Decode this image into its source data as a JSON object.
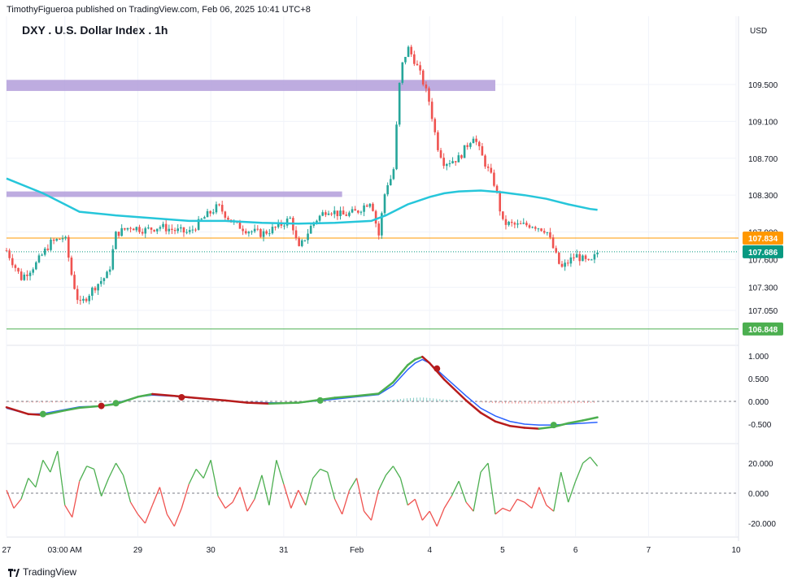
{
  "header": {
    "published": "TimothyFigueroa published on TradingView.com, Feb 06, 2025 10:41 UTC+8"
  },
  "title": "DXY . U.S. Dollar Index . 1h",
  "currency": "USD",
  "footer": {
    "brand": "TradingView"
  },
  "colors": {
    "bull": "#26a69a",
    "bear": "#ef5350",
    "ma": "#26c6da",
    "zone": "#b39ddb",
    "orange_line": "#ff9800",
    "green_line": "#4caf50",
    "last_price": "#089981",
    "macd_blue": "#2962ff",
    "macd_green": "#4caf50",
    "macd_red": "#b71c1c",
    "osc_green": "#4caf50",
    "osc_red": "#ef5350"
  },
  "chart_data": [
    {
      "type": "candlestick",
      "title": "DXY . U.S. Dollar Index . 1h",
      "y_ticks": [
        "109.500",
        "109.100",
        "108.700",
        "108.300",
        "107.900",
        "107.600",
        "107.300",
        "107.050"
      ],
      "y_tick_values": [
        109.5,
        109.1,
        108.7,
        108.3,
        107.9,
        107.6,
        107.3,
        107.05
      ],
      "x_ticks": [
        "27",
        "03:00 AM",
        "29",
        "30",
        "31",
        "Feb",
        "4",
        "5",
        "6",
        "7",
        "10"
      ],
      "x_tick_positions": [
        0,
        8,
        18,
        28,
        38,
        48,
        58,
        68,
        78,
        88,
        100
      ],
      "price_levels": [
        {
          "name": "resistance",
          "value": 107.834,
          "label": "107.834"
        },
        {
          "name": "last",
          "value": 107.686,
          "label": "107.686"
        },
        {
          "name": "support",
          "value": 106.848,
          "label": "106.848"
        }
      ],
      "zones": [
        {
          "from_x": 0,
          "to_x": 67,
          "low": 109.43,
          "high": 109.55
        },
        {
          "from_x": 0,
          "to_x": 46,
          "low": 108.28,
          "high": 108.34
        }
      ],
      "close_path": [
        [
          0,
          107.7
        ],
        [
          2,
          107.4
        ],
        [
          4,
          107.55
        ],
        [
          6,
          107.78
        ],
        [
          8,
          107.85
        ],
        [
          9,
          107.4
        ],
        [
          10,
          107.1
        ],
        [
          12,
          107.3
        ],
        [
          14,
          107.45
        ],
        [
          15,
          107.88
        ],
        [
          17,
          107.96
        ],
        [
          19,
          107.92
        ],
        [
          21,
          107.96
        ],
        [
          23,
          107.92
        ],
        [
          25,
          107.89
        ],
        [
          27,
          108.05
        ],
        [
          29,
          108.18
        ],
        [
          31,
          108.0
        ],
        [
          33,
          107.92
        ],
        [
          35,
          107.88
        ],
        [
          37,
          107.95
        ],
        [
          39,
          108.05
        ],
        [
          40,
          107.7
        ],
        [
          42,
          108.0
        ],
        [
          44,
          108.15
        ],
        [
          46,
          108.08
        ],
        [
          48,
          108.12
        ],
        [
          50,
          108.25
        ],
        [
          51,
          107.85
        ],
        [
          52,
          108.4
        ],
        [
          53,
          108.52
        ],
        [
          54,
          109.65
        ],
        [
          55,
          109.9
        ],
        [
          56,
          109.75
        ],
        [
          57,
          109.55
        ],
        [
          58,
          109.3
        ],
        [
          59,
          108.85
        ],
        [
          60,
          108.65
        ],
        [
          62,
          108.7
        ],
        [
          64,
          108.95
        ],
        [
          65,
          108.75
        ],
        [
          67,
          108.4
        ],
        [
          68,
          108.0
        ],
        [
          70,
          107.97
        ],
        [
          72,
          107.98
        ],
        [
          74,
          107.92
        ],
        [
          76,
          107.5
        ],
        [
          78,
          107.65
        ],
        [
          80,
          107.55
        ],
        [
          81,
          107.68
        ]
      ],
      "candle_count": 200,
      "ma_path": [
        [
          0,
          108.48
        ],
        [
          5,
          108.32
        ],
        [
          10,
          108.12
        ],
        [
          15,
          108.08
        ],
        [
          20,
          108.05
        ],
        [
          25,
          108.02
        ],
        [
          30,
          108.02
        ],
        [
          35,
          108.0
        ],
        [
          40,
          107.99
        ],
        [
          45,
          108.0
        ],
        [
          50,
          108.02
        ],
        [
          52,
          108.08
        ],
        [
          55,
          108.2
        ],
        [
          58,
          108.28
        ],
        [
          60,
          108.32
        ],
        [
          62,
          108.34
        ],
        [
          65,
          108.35
        ],
        [
          68,
          108.33
        ],
        [
          71,
          108.3
        ],
        [
          74,
          108.26
        ],
        [
          77,
          108.2
        ],
        [
          80,
          108.15
        ],
        [
          81,
          108.14
        ]
      ]
    },
    {
      "type": "line",
      "name": "macd",
      "y_ticks": [
        "1.000",
        "0.500",
        "0.000",
        "-0.500"
      ],
      "y_tick_values": [
        1.0,
        0.5,
        0.0,
        -0.5
      ],
      "macd": [
        [
          0,
          -0.15
        ],
        [
          3,
          -0.28
        ],
        [
          5,
          -0.27
        ],
        [
          8,
          -0.18
        ],
        [
          10,
          -0.12
        ],
        [
          13,
          -0.1
        ],
        [
          15,
          -0.04
        ],
        [
          18,
          0.1
        ],
        [
          20,
          0.14
        ],
        [
          23,
          0.11
        ],
        [
          25,
          0.08
        ],
        [
          30,
          0.02
        ],
        [
          33,
          -0.02
        ],
        [
          36,
          -0.03
        ],
        [
          40,
          -0.03
        ],
        [
          45,
          0.05
        ],
        [
          48,
          0.1
        ],
        [
          51,
          0.15
        ],
        [
          53,
          0.35
        ],
        [
          55,
          0.7
        ],
        [
          56,
          0.84
        ],
        [
          57,
          0.92
        ],
        [
          58,
          0.84
        ],
        [
          60,
          0.55
        ],
        [
          63,
          0.12
        ],
        [
          65,
          -0.15
        ],
        [
          67,
          -0.32
        ],
        [
          69,
          -0.44
        ],
        [
          71,
          -0.5
        ],
        [
          73,
          -0.52
        ],
        [
          75,
          -0.52
        ],
        [
          77,
          -0.5
        ],
        [
          79,
          -0.48
        ],
        [
          81,
          -0.46
        ]
      ],
      "signal": [
        [
          0,
          -0.13
        ],
        [
          3,
          -0.28
        ],
        [
          5,
          -0.3
        ],
        [
          8,
          -0.2
        ],
        [
          10,
          -0.14
        ],
        [
          13,
          -0.1
        ],
        [
          15,
          -0.06
        ],
        [
          18,
          0.1
        ],
        [
          20,
          0.16
        ],
        [
          23,
          0.12
        ],
        [
          25,
          0.09
        ],
        [
          30,
          0.02
        ],
        [
          33,
          -0.03
        ],
        [
          36,
          -0.05
        ],
        [
          40,
          -0.03
        ],
        [
          45,
          0.08
        ],
        [
          48,
          0.12
        ],
        [
          51,
          0.17
        ],
        [
          53,
          0.42
        ],
        [
          55,
          0.8
        ],
        [
          56,
          0.92
        ],
        [
          57,
          0.98
        ],
        [
          58,
          0.84
        ],
        [
          60,
          0.48
        ],
        [
          63,
          0.02
        ],
        [
          65,
          -0.25
        ],
        [
          67,
          -0.44
        ],
        [
          69,
          -0.54
        ],
        [
          71,
          -0.58
        ],
        [
          73,
          -0.6
        ],
        [
          75,
          -0.56
        ],
        [
          77,
          -0.48
        ],
        [
          79,
          -0.42
        ],
        [
          81,
          -0.35
        ]
      ],
      "cross_up": [
        [
          5,
          -0.28
        ],
        [
          15,
          -0.04
        ],
        [
          43,
          0.02
        ],
        [
          75,
          -0.52
        ]
      ],
      "cross_down": [
        [
          13,
          -0.1
        ],
        [
          24,
          0.09
        ],
        [
          59,
          0.72
        ]
      ]
    },
    {
      "type": "line",
      "name": "oscillator",
      "y_ticks": [
        "20.000",
        "0.000",
        "-20.000"
      ],
      "y_tick_values": [
        20,
        0,
        -20
      ],
      "values": [
        [
          0,
          2
        ],
        [
          1,
          -10
        ],
        [
          2,
          -4
        ],
        [
          3,
          10
        ],
        [
          4,
          4
        ],
        [
          5,
          22
        ],
        [
          6,
          14
        ],
        [
          7,
          28
        ],
        [
          8,
          -8
        ],
        [
          9,
          -16
        ],
        [
          10,
          8
        ],
        [
          11,
          18
        ],
        [
          12,
          16
        ],
        [
          13,
          -2
        ],
        [
          14,
          10
        ],
        [
          15,
          20
        ],
        [
          16,
          12
        ],
        [
          17,
          -6
        ],
        [
          18,
          -14
        ],
        [
          19,
          -20
        ],
        [
          20,
          -8
        ],
        [
          21,
          4
        ],
        [
          22,
          -14
        ],
        [
          23,
          -22
        ],
        [
          24,
          -10
        ],
        [
          25,
          6
        ],
        [
          26,
          16
        ],
        [
          27,
          10
        ],
        [
          28,
          22
        ],
        [
          29,
          -2
        ],
        [
          30,
          -10
        ],
        [
          31,
          -6
        ],
        [
          32,
          4
        ],
        [
          33,
          -12
        ],
        [
          34,
          -4
        ],
        [
          35,
          12
        ],
        [
          36,
          -8
        ],
        [
          37,
          22
        ],
        [
          38,
          6
        ],
        [
          39,
          -10
        ],
        [
          40,
          2
        ],
        [
          41,
          -8
        ],
        [
          42,
          10
        ],
        [
          43,
          16
        ],
        [
          44,
          14
        ],
        [
          45,
          -4
        ],
        [
          46,
          -14
        ],
        [
          47,
          2
        ],
        [
          48,
          10
        ],
        [
          49,
          -12
        ],
        [
          50,
          -18
        ],
        [
          51,
          2
        ],
        [
          52,
          12
        ],
        [
          53,
          18
        ],
        [
          54,
          10
        ],
        [
          55,
          -8
        ],
        [
          56,
          -4
        ],
        [
          57,
          -18
        ],
        [
          58,
          -12
        ],
        [
          59,
          -22
        ],
        [
          60,
          -10
        ],
        [
          61,
          -2
        ],
        [
          62,
          8
        ],
        [
          63,
          -6
        ],
        [
          64,
          -12
        ],
        [
          65,
          14
        ],
        [
          66,
          20
        ],
        [
          67,
          -14
        ],
        [
          68,
          -10
        ],
        [
          69,
          -12
        ],
        [
          70,
          -4
        ],
        [
          71,
          -6
        ],
        [
          72,
          -10
        ],
        [
          73,
          4
        ],
        [
          74,
          -8
        ],
        [
          75,
          -12
        ],
        [
          76,
          14
        ],
        [
          77,
          -6
        ],
        [
          78,
          8
        ],
        [
          79,
          20
        ],
        [
          80,
          24
        ],
        [
          81,
          18
        ]
      ]
    }
  ]
}
